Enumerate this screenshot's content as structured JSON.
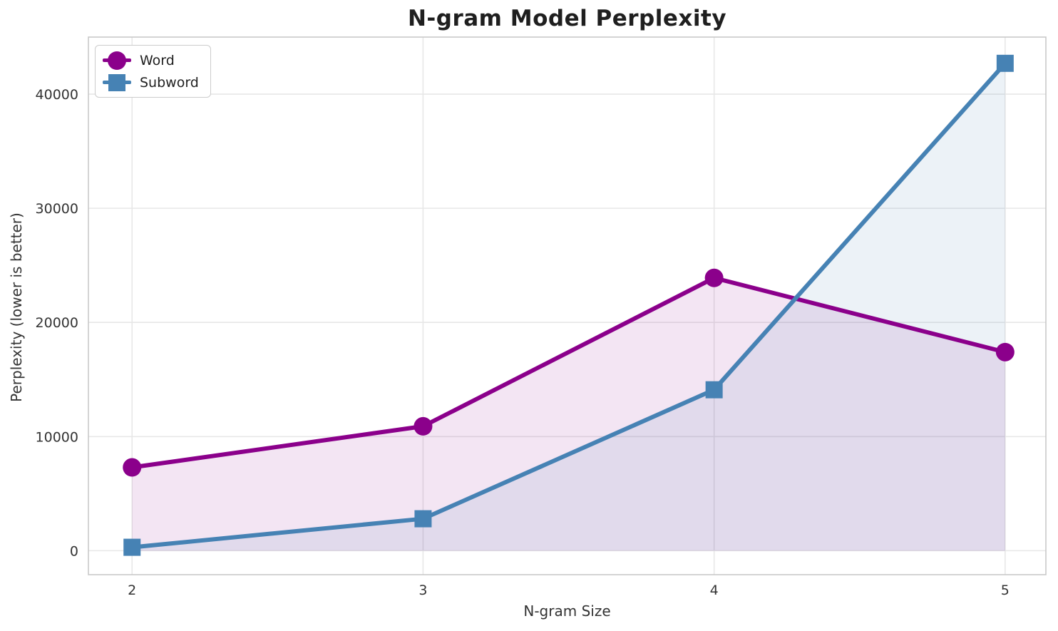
{
  "chart_data": {
    "type": "line",
    "title": "N-gram Model Perplexity",
    "xlabel": "N-gram Size",
    "ylabel": "Perplexity (lower is better)",
    "x": [
      2,
      3,
      4,
      5
    ],
    "series": [
      {
        "name": "Word",
        "marker": "circle",
        "color": "#8B008B",
        "fill_alpha": 0.1,
        "values": [
          7300,
          10900,
          23900,
          17400
        ]
      },
      {
        "name": "Subword",
        "marker": "square",
        "color": "#4682B4",
        "fill_alpha": 0.1,
        "values": [
          300,
          2800,
          14100,
          42700
        ]
      }
    ],
    "xticks": [
      2,
      3,
      4,
      5
    ],
    "yticks": [
      0,
      10000,
      20000,
      30000,
      40000
    ],
    "xlim": [
      1.85,
      5.14
    ],
    "ylim": [
      -2100,
      45000
    ],
    "grid": true,
    "area_fill_to": 0,
    "legend_position": "upper left",
    "style": {
      "grid_color": "#e7e7e7",
      "spine_color": "#c9c9c9",
      "tick_label_color": "#333333",
      "line_width": 6,
      "marker_size": 26
    }
  }
}
